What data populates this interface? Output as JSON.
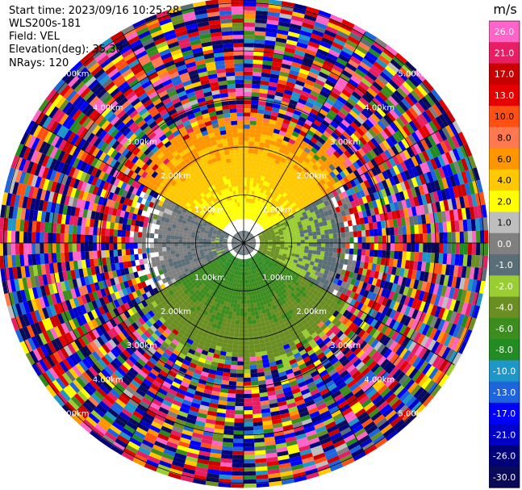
{
  "header": {
    "start_time": "Start time: 2023/09/16 10:25:28",
    "device": "WLS200s-181",
    "field": "Field: VEL",
    "elevation": "Elevation(deg): 35.30",
    "nrays": "NRays: 120"
  },
  "chart_data": {
    "type": "heatmap",
    "projection": "polar-ppi",
    "nrays": 120,
    "range_rings_km": [
      1,
      2,
      3,
      4,
      5
    ],
    "range_labels": [
      "1.00km",
      "2.00km",
      "3.00km",
      "4.00km",
      "5.00km"
    ],
    "spokes": 12,
    "colorbar": {
      "unit": "m/s",
      "bounds": [
        -30,
        -26,
        -21,
        -17,
        -13,
        -10,
        -8,
        -6,
        -4,
        -2,
        -1,
        0,
        1,
        2,
        4,
        6,
        8,
        10,
        13,
        17,
        21,
        26,
        30
      ],
      "tick_labels": [
        "26.0",
        "21.0",
        "17.0",
        "13.0",
        "10.0",
        "8.0",
        "6.0",
        "4.0",
        "2.0",
        "1.0",
        "0.0",
        "-1.0",
        "-2.0",
        "-4.0",
        "-6.0",
        "-8.0",
        "-10.0",
        "-13.0",
        "-17.0",
        "-21.0",
        "-26.0",
        "-30.0"
      ],
      "colors": [
        "#0a0a5a",
        "#00007a",
        "#0000c8",
        "#0000ff",
        "#1e64dc",
        "#1e96c8",
        "#228b22",
        "#3c8c1e",
        "#6b8e23",
        "#9acd32",
        "#5a6e78",
        "#808080",
        "#bebebe",
        "#ffff00",
        "#ffc800",
        "#ff9600",
        "#ff7850",
        "#ff5014",
        "#e60000",
        "#c80000",
        "#e61e64",
        "#ff64c8"
      ]
    },
    "description_regions": [
      {
        "sector_deg": [
          300,
          60
        ],
        "range_km": [
          0.5,
          2.5
        ],
        "velocity_range": [
          1,
          8
        ]
      },
      {
        "sector_deg": [
          60,
          120
        ],
        "range_km": [
          0.3,
          2.2
        ],
        "velocity_range": [
          -4,
          1
        ]
      },
      {
        "sector_deg": [
          120,
          240
        ],
        "range_km": [
          0.3,
          2.5
        ],
        "velocity_range": [
          -8,
          -1
        ]
      },
      {
        "sector_deg": [
          240,
          300
        ],
        "range_km": [
          0.3,
          2.0
        ],
        "velocity_range": [
          -1,
          1
        ]
      },
      {
        "sector_deg": [
          0,
          360
        ],
        "range_km": [
          2.5,
          5.1
        ],
        "velocity_range": [
          -30,
          30
        ],
        "noisy": true
      }
    ]
  }
}
